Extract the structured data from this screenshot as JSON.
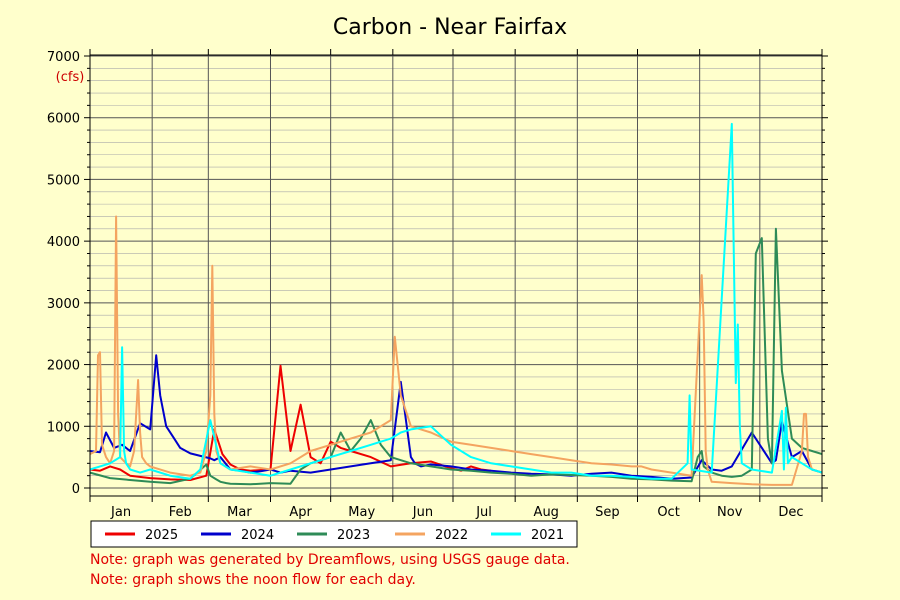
{
  "chart_data": {
    "type": "line",
    "title": "Carbon - Near Fairfax",
    "ylabel": "(cfs)",
    "ylim": [
      0,
      7000
    ],
    "yticks": [
      0,
      1000,
      2000,
      3000,
      4000,
      5000,
      6000,
      7000
    ],
    "xlim": [
      0,
      365
    ],
    "months": [
      "Jan",
      "Feb",
      "Mar",
      "Apr",
      "May",
      "Jun",
      "Jul",
      "Aug",
      "Sep",
      "Oct",
      "Nov",
      "Dec"
    ],
    "grid": true,
    "legend_position": "bottom",
    "series": [
      {
        "name": "2025",
        "color": "#ee0000",
        "x": [
          0,
          5,
          10,
          15,
          20,
          30,
          40,
          50,
          58,
          62,
          66,
          70,
          75,
          80,
          90,
          95,
          100,
          105,
          110,
          115,
          120,
          125,
          130,
          140,
          150,
          160,
          170,
          180,
          185,
          190,
          195,
          200
        ],
        "y": [
          300,
          280,
          350,
          300,
          200,
          160,
          140,
          130,
          200,
          950,
          550,
          380,
          300,
          280,
          300,
          1980,
          600,
          1350,
          500,
          400,
          750,
          650,
          600,
          500,
          350,
          400,
          430,
          320,
          280,
          350,
          300,
          280
        ]
      },
      {
        "name": "2024",
        "color": "#0000cc",
        "x": [
          0,
          5,
          8,
          12,
          16,
          20,
          25,
          30,
          33,
          35,
          38,
          42,
          45,
          50,
          55,
          60,
          62,
          65,
          70,
          75,
          80,
          85,
          90,
          95,
          100,
          110,
          120,
          130,
          140,
          150,
          155,
          160,
          162,
          165,
          170,
          180,
          190,
          200,
          210,
          220,
          230,
          240,
          250,
          260,
          270,
          280,
          290,
          300,
          305,
          310,
          315,
          320,
          330,
          340,
          342,
          345,
          350,
          355,
          360,
          365
        ],
        "y": [
          600,
          580,
          900,
          650,
          700,
          600,
          1050,
          950,
          2150,
          1500,
          1000,
          800,
          650,
          560,
          520,
          480,
          450,
          500,
          300,
          280,
          250,
          270,
          300,
          250,
          280,
          250,
          300,
          350,
          400,
          450,
          1720,
          500,
          400,
          350,
          380,
          350,
          300,
          280,
          250,
          230,
          220,
          200,
          230,
          250,
          200,
          180,
          150,
          170,
          450,
          300,
          280,
          350,
          900,
          400,
          450,
          1080,
          500,
          600,
          300,
          250
        ]
      },
      {
        "name": "2023",
        "color": "#2e8b57",
        "x": [
          0,
          10,
          20,
          30,
          40,
          50,
          58,
          60,
          63,
          65,
          68,
          70,
          80,
          90,
          100,
          105,
          110,
          120,
          125,
          130,
          135,
          140,
          145,
          150,
          160,
          170,
          180,
          190,
          200,
          210,
          220,
          230,
          240,
          250,
          260,
          270,
          280,
          290,
          300,
          303,
          305,
          306,
          310,
          315,
          320,
          325,
          330,
          332,
          335,
          338,
          340,
          342,
          345,
          350,
          355,
          360,
          365
        ],
        "y": [
          250,
          160,
          130,
          100,
          80,
          150,
          380,
          200,
          140,
          100,
          80,
          70,
          60,
          80,
          70,
          300,
          400,
          500,
          900,
          600,
          800,
          1100,
          700,
          500,
          400,
          350,
          300,
          280,
          250,
          230,
          200,
          220,
          210,
          200,
          180,
          150,
          140,
          120,
          110,
          500,
          600,
          350,
          250,
          200,
          180,
          200,
          300,
          3800,
          4050,
          800,
          400,
          4200,
          1900,
          800,
          650,
          600,
          550
        ]
      },
      {
        "name": "2022",
        "color": "#f4a460",
        "x": [
          0,
          3,
          4,
          5,
          6,
          8,
          10,
          12,
          13,
          14,
          15,
          18,
          20,
          22,
          24,
          25,
          26,
          28,
          30,
          40,
          50,
          55,
          58,
          60,
          61,
          62,
          63,
          65,
          70,
          80,
          90,
          100,
          110,
          120,
          130,
          140,
          145,
          150,
          152,
          155,
          158,
          160,
          165,
          170,
          180,
          190,
          200,
          210,
          220,
          230,
          240,
          250,
          260,
          270,
          275,
          280,
          290,
          300,
          305,
          306,
          307,
          308,
          309,
          310,
          320,
          330,
          340,
          350,
          355,
          356,
          357,
          358,
          360,
          365
        ],
        "y": [
          550,
          600,
          2150,
          2200,
          700,
          500,
          400,
          600,
          4400,
          1200,
          500,
          400,
          350,
          600,
          1750,
          900,
          500,
          400,
          350,
          250,
          200,
          250,
          600,
          1500,
          3600,
          1200,
          600,
          400,
          300,
          350,
          300,
          400,
          600,
          700,
          800,
          900,
          1000,
          1100,
          2450,
          1500,
          1200,
          1000,
          950,
          900,
          750,
          700,
          650,
          600,
          550,
          500,
          450,
          400,
          380,
          350,
          350,
          300,
          250,
          200,
          3450,
          2700,
          600,
          300,
          200,
          100,
          80,
          60,
          50,
          50,
          600,
          1200,
          1200,
          500,
          300,
          250
        ]
      },
      {
        "name": "2021",
        "color": "#00ffff",
        "x": [
          0,
          5,
          10,
          15,
          16,
          17,
          18,
          20,
          25,
          30,
          40,
          50,
          55,
          60,
          65,
          70,
          80,
          90,
          100,
          110,
          120,
          130,
          140,
          150,
          155,
          160,
          170,
          180,
          190,
          200,
          210,
          220,
          230,
          240,
          250,
          260,
          270,
          280,
          290,
          298,
          299,
          300,
          310,
          320,
          322,
          323,
          324,
          325,
          330,
          340,
          345,
          346,
          347,
          348,
          350,
          355,
          360,
          365
        ],
        "y": [
          300,
          350,
          400,
          500,
          2280,
          600,
          400,
          300,
          250,
          300,
          200,
          150,
          300,
          1100,
          400,
          300,
          250,
          200,
          300,
          400,
          500,
          600,
          700,
          800,
          900,
          950,
          1000,
          700,
          500,
          400,
          350,
          300,
          250,
          250,
          200,
          200,
          180,
          150,
          150,
          400,
          1500,
          300,
          250,
          5900,
          1700,
          2650,
          1000,
          400,
          300,
          250,
          1250,
          300,
          1300,
          400,
          500,
          400,
          300,
          250
        ]
      }
    ]
  },
  "notes": {
    "note1": "Note: graph was generated by Dreamflows, using USGS gauge data.",
    "note2": "Note: graph shows the noon flow for each day."
  }
}
